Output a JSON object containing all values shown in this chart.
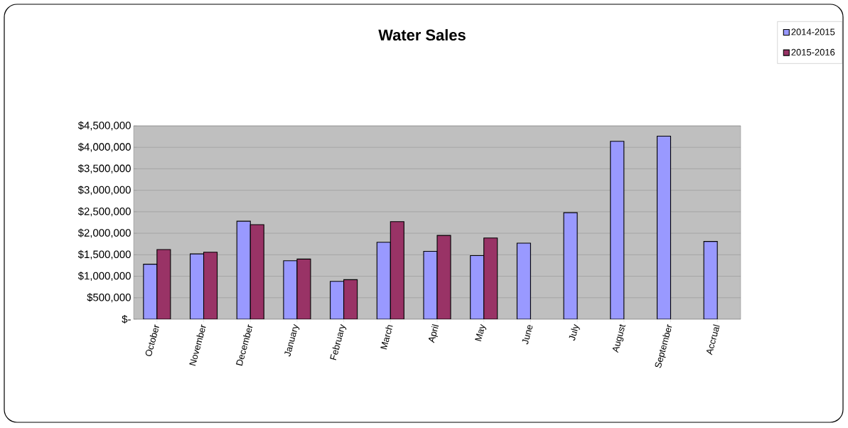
{
  "chart_data": {
    "type": "bar",
    "title": "Water Sales",
    "categories": [
      "October",
      "November",
      "December",
      "January",
      "February",
      "March",
      "April",
      "May",
      "June",
      "July",
      "August",
      "September",
      "Accrual"
    ],
    "series": [
      {
        "name": "2014-2015",
        "color": "#9999ff",
        "values": [
          1280000,
          1520000,
          2280000,
          1360000,
          880000,
          1790000,
          1580000,
          1480000,
          1770000,
          2480000,
          4140000,
          4260000,
          1810000
        ]
      },
      {
        "name": "2015-2016",
        "color": "#993366",
        "values": [
          1620000,
          1560000,
          2200000,
          1400000,
          920000,
          2270000,
          1950000,
          1890000,
          null,
          null,
          null,
          null,
          null
        ]
      }
    ],
    "ylim": [
      0,
      4500000
    ],
    "yticks": [
      {
        "value": 0,
        "label": "$-"
      },
      {
        "value": 500000,
        "label": "$500,000"
      },
      {
        "value": 1000000,
        "label": "$1,000,000"
      },
      {
        "value": 1500000,
        "label": "$1,500,000"
      },
      {
        "value": 2000000,
        "label": "$2,000,000"
      },
      {
        "value": 2500000,
        "label": "$2,500,000"
      },
      {
        "value": 3000000,
        "label": "$3,000,000"
      },
      {
        "value": 3500000,
        "label": "$3,500,000"
      },
      {
        "value": 4000000,
        "label": "$4,000,000"
      },
      {
        "value": 4500000,
        "label": "$4,500,000"
      }
    ],
    "grid": "y",
    "legend": "top right"
  }
}
